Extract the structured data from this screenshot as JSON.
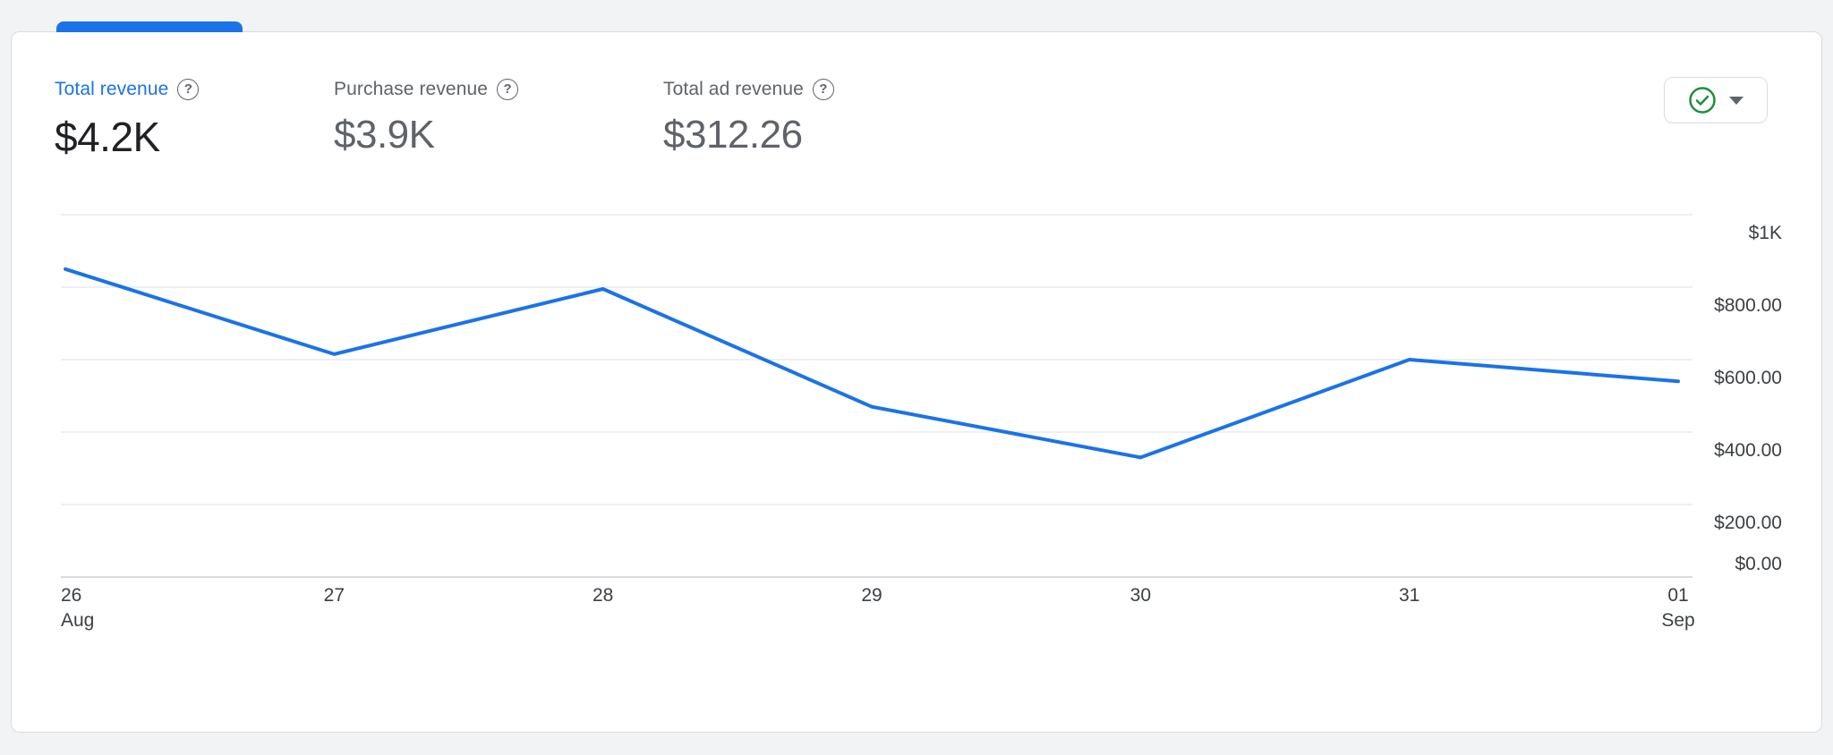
{
  "metrics": [
    {
      "label": "Total revenue",
      "value": "$4.2K",
      "selected": true
    },
    {
      "label": "Purchase revenue",
      "value": "$3.9K",
      "selected": false
    },
    {
      "label": "Total ad revenue",
      "value": "$312.26",
      "selected": false
    }
  ],
  "help_icon_glyph": "?",
  "status_control": {
    "icon": "check-circle-icon"
  },
  "colors": {
    "accent_blue": "#1a73e8",
    "check_green": "#1e8e3e",
    "grid_gray": "#e8eaed",
    "axis_gray": "#dadce0",
    "text_dark": "#202124",
    "text_gray": "#5f6368"
  },
  "chart_data": {
    "type": "line",
    "x": [
      "26",
      "27",
      "28",
      "29",
      "30",
      "31",
      "01"
    ],
    "x_sub": [
      "Aug",
      "",
      "",
      "",
      "",
      "",
      "Sep"
    ],
    "values": [
      850,
      615,
      795,
      470,
      330,
      600,
      540
    ],
    "ylim": [
      0,
      1000
    ],
    "yticks": [
      1000,
      800,
      600,
      400,
      200,
      0
    ],
    "ytick_labels": [
      "$1K",
      "$800.00",
      "$600.00",
      "$400.00",
      "$200.00",
      "$0.00"
    ],
    "title": "",
    "xlabel": "",
    "ylabel": "",
    "grid": true,
    "legend": "none",
    "line_color": "#1a73e8"
  }
}
